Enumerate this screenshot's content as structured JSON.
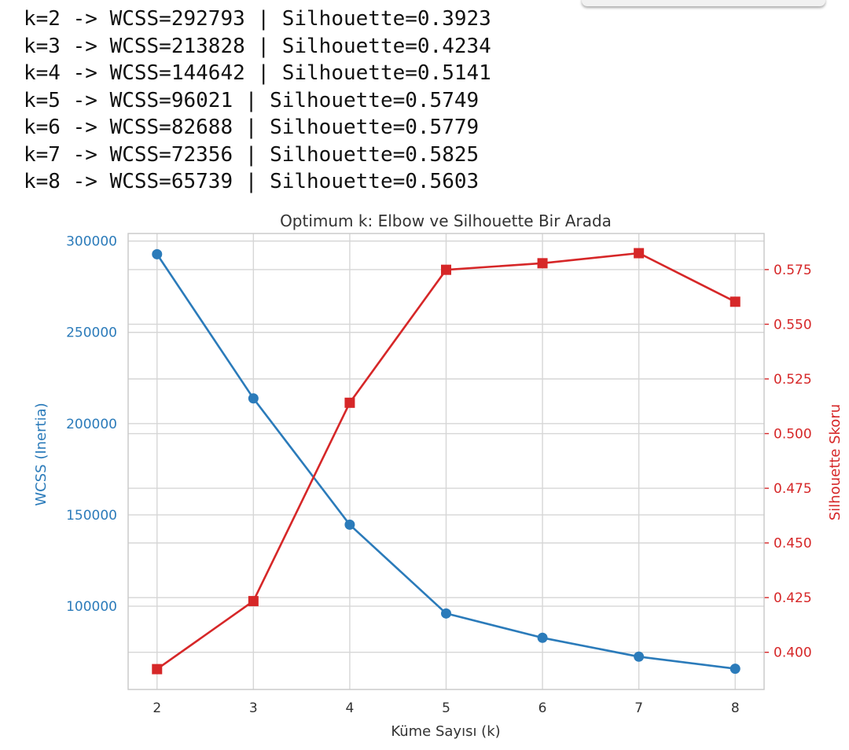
{
  "output_lines": [
    "k=2 -> WCSS=292793 | Silhouette=0.3923",
    "k=3 -> WCSS=213828 | Silhouette=0.4234",
    "k=4 -> WCSS=144642 | Silhouette=0.5141",
    "k=5 -> WCSS=96021 | Silhouette=0.5749",
    "k=6 -> WCSS=82688 | Silhouette=0.5779",
    "k=7 -> WCSS=72356 | Silhouette=0.5825",
    "k=8 -> WCSS=65739 | Silhouette=0.5603"
  ],
  "chart_data": {
    "type": "line",
    "title": "Optimum k: Elbow ve Silhouette Bir Arada",
    "xlabel": "Küme Sayısı (k)",
    "x": [
      2,
      3,
      4,
      5,
      6,
      7,
      8
    ],
    "xticks": [
      "2",
      "3",
      "4",
      "5",
      "6",
      "7",
      "8"
    ],
    "xlim": [
      1.7,
      8.3
    ],
    "grid": true,
    "legend": "none",
    "y_left": {
      "label": "WCSS (Inertia)",
      "color": "#2b7bba",
      "ticks": [
        100000,
        150000,
        200000,
        250000,
        300000
      ],
      "tick_labels": [
        "100000",
        "150000",
        "200000",
        "250000",
        "300000"
      ],
      "ylim": [
        54386,
        304146
      ]
    },
    "y_right": {
      "label": "Silhouette Skoru",
      "color": "#d62728",
      "ticks": [
        0.4,
        0.425,
        0.45,
        0.475,
        0.5,
        0.525,
        0.55,
        0.575
      ],
      "tick_labels": [
        "0.400",
        "0.425",
        "0.450",
        "0.475",
        "0.500",
        "0.525",
        "0.550",
        "0.575"
      ],
      "ylim": [
        0.383,
        0.5915
      ]
    },
    "series": [
      {
        "name": "WCSS (Inertia)",
        "axis": "left",
        "color": "#2b7bba",
        "marker": "circle",
        "values": [
          292793,
          213828,
          144642,
          96021,
          82688,
          72356,
          65739
        ]
      },
      {
        "name": "Silhouette Skoru",
        "axis": "right",
        "color": "#d62728",
        "marker": "square",
        "values": [
          0.3923,
          0.4234,
          0.5141,
          0.5749,
          0.5779,
          0.5825,
          0.5603
        ]
      }
    ]
  }
}
